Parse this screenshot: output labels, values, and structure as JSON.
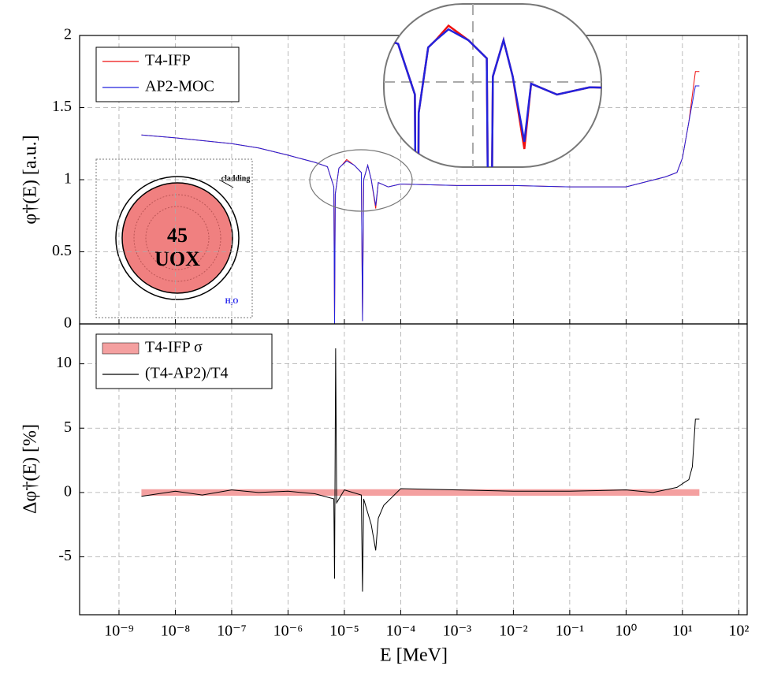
{
  "chart_data": [
    {
      "type": "line",
      "ylabel": "φ†(E) [a.u.]",
      "log_x": true,
      "grid": true,
      "legend": "upper left",
      "xlim": [
        2e-10,
        141
      ],
      "xticks": [
        1e-09,
        1e-08,
        1e-07,
        1e-06,
        1e-05,
        0.0001,
        0.001,
        0.01,
        0.1,
        1,
        10,
        100
      ],
      "ylim": [
        0,
        2
      ],
      "yticks": [
        0,
        0.5,
        1,
        1.5,
        2
      ],
      "x": [
        2.5e-09,
        1e-08,
        1e-07,
        3e-07,
        1e-06,
        3e-06,
        5e-06,
        6.5e-06,
        6.7e-06,
        6.9e-06,
        8e-06,
        9e-06,
        1.1e-05,
        1.5e-05,
        2e-05,
        2.1e-05,
        2.2e-05,
        2.6e-05,
        3e-05,
        3.6e-05,
        4e-05,
        6e-05,
        0.0001,
        0.001,
        0.01,
        0.1,
        1,
        2,
        5,
        8,
        10,
        13,
        17,
        20
      ],
      "series": [
        {
          "name": "T4-IFP",
          "color": "#ee1111",
          "values": [
            1.31,
            1.29,
            1.25,
            1.22,
            1.17,
            1.12,
            1.09,
            0.95,
            0,
            0.9,
            1.08,
            1.1,
            1.14,
            1.1,
            1.05,
            0.02,
            1.0,
            1.1,
            1.0,
            0.8,
            0.98,
            0.95,
            0.97,
            0.96,
            0.96,
            0.95,
            0.95,
            0.98,
            1.02,
            1.05,
            1.15,
            1.4,
            1.75,
            1.75
          ]
        },
        {
          "name": "AP2-MOC",
          "color": "#2222dd",
          "values": [
            1.31,
            1.29,
            1.25,
            1.22,
            1.17,
            1.12,
            1.09,
            0.95,
            0,
            0.9,
            1.08,
            1.1,
            1.13,
            1.1,
            1.05,
            0.02,
            1.0,
            1.1,
            1.0,
            0.82,
            0.98,
            0.95,
            0.97,
            0.96,
            0.96,
            0.95,
            0.95,
            0.98,
            1.02,
            1.05,
            1.15,
            1.4,
            1.65,
            1.65
          ]
        }
      ],
      "annotations": [
        "cladding",
        "45",
        "UOX",
        "H₂O"
      ]
    },
    {
      "type": "line",
      "ylabel": "Δφ†(E) [%]",
      "xlabel": "E [MeV]",
      "log_x": true,
      "grid": true,
      "legend": "upper left",
      "xlim": [
        2e-10,
        141
      ],
      "xticks": [
        {
          "value": 1e-09,
          "label": "10⁻⁹"
        },
        {
          "value": 1e-08,
          "label": "10⁻⁸"
        },
        {
          "value": 1e-07,
          "label": "10⁻⁷"
        },
        {
          "value": 1e-06,
          "label": "10⁻⁶"
        },
        {
          "value": 1e-05,
          "label": "10⁻⁵"
        },
        {
          "value": 0.0001,
          "label": "10⁻⁴"
        },
        {
          "value": 0.001,
          "label": "10⁻³"
        },
        {
          "value": 0.01,
          "label": "10⁻²"
        },
        {
          "value": 0.1,
          "label": "10⁻¹"
        },
        {
          "value": 1,
          "label": "10⁰"
        },
        {
          "value": 10,
          "label": "10¹"
        },
        {
          "value": 100,
          "label": "10²"
        }
      ],
      "ylim": [
        -9.5,
        13.1
      ],
      "yticks": [
        -5,
        0,
        5,
        10
      ],
      "series": [
        {
          "name": "T4-IFP σ",
          "color": "#f4a0a0",
          "band": true,
          "x": [
            2.5e-09,
            20
          ],
          "values": [
            0.25,
            0.25
          ]
        },
        {
          "name": "(T4-AP2)/T4",
          "color": "#000000",
          "x": [
            2.5e-09,
            1e-08,
            3e-08,
            1e-07,
            3e-07,
            1e-06,
            3e-06,
            6.5e-06,
            6.7e-06,
            7e-06,
            7.3e-06,
            1e-05,
            2e-05,
            2.1e-05,
            2.2e-05,
            3e-05,
            3.6e-05,
            4e-05,
            5e-05,
            0.0001,
            0.001,
            0.01,
            0.1,
            1,
            3,
            8,
            11,
            13,
            15,
            17,
            20
          ],
          "values": [
            -0.3,
            0.1,
            -0.2,
            0.2,
            0,
            0.1,
            -0.1,
            -0.5,
            -6.7,
            11.2,
            -0.8,
            0.2,
            -0.2,
            -7.7,
            -0.5,
            -2.5,
            -4.5,
            -2.0,
            -1.0,
            0.3,
            0.2,
            0.1,
            0.1,
            0.2,
            0,
            0.4,
            0.8,
            1.0,
            2.0,
            5.7,
            5.7
          ]
        }
      ]
    }
  ]
}
